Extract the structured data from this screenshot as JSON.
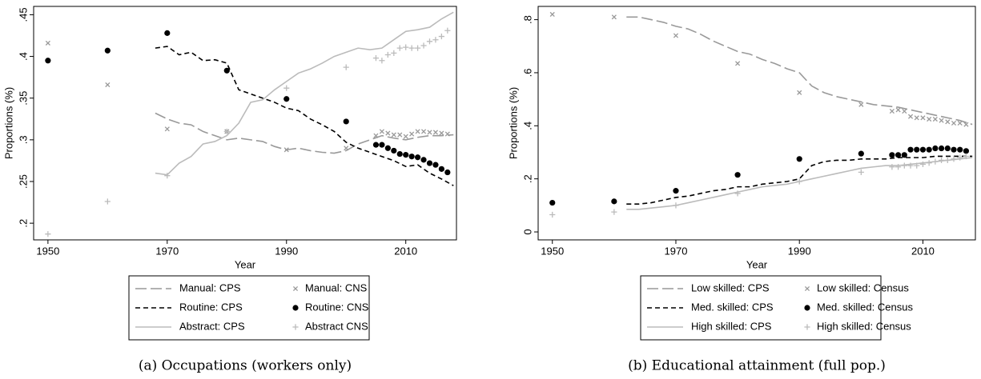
{
  "chart_data": [
    {
      "type": "line",
      "caption": "(a) Occupations (workers only)",
      "x_label": "Year",
      "y_label": "Proportions (%)",
      "xlim": [
        1947.6,
        2018.5
      ],
      "xticks": [
        1950,
        1970,
        1990,
        2010
      ],
      "ylim": [
        0.18,
        0.46
      ],
      "yticks": [
        {
          "value": 0.2,
          "label": ".2"
        },
        {
          "value": 0.25,
          "label": ".25"
        },
        {
          "value": 0.3,
          "label": ".3"
        },
        {
          "value": 0.35,
          "label": ".35"
        },
        {
          "value": 0.4,
          "label": ".4"
        },
        {
          "value": 0.45,
          "label": ".45"
        }
      ],
      "series": [
        {
          "name": "Manual: CPS",
          "color": "#999999",
          "style": "long-dash",
          "x": [
            1968,
            1970,
            1972,
            1974,
            1976,
            1978,
            1980,
            1982,
            1984,
            1986,
            1988,
            1990,
            1992,
            1994,
            1996,
            1998,
            2000,
            2002,
            2004,
            2006,
            2008,
            2010,
            2012,
            2014,
            2016,
            2018
          ],
          "values": [
            0.332,
            0.325,
            0.32,
            0.318,
            0.31,
            0.305,
            0.3,
            0.302,
            0.3,
            0.298,
            0.292,
            0.288,
            0.29,
            0.287,
            0.285,
            0.284,
            0.287,
            0.295,
            0.3,
            0.305,
            0.302,
            0.3,
            0.303,
            0.305,
            0.305,
            0.306
          ]
        },
        {
          "name": "Manual: CNS",
          "color": "#999999",
          "marker": "x",
          "x": [
            1950,
            1960,
            1970,
            1980,
            1990,
            2000,
            2005,
            2006,
            2007,
            2008,
            2009,
            2010,
            2011,
            2012,
            2013,
            2014,
            2015,
            2016,
            2017
          ],
          "values": [
            0.416,
            0.366,
            0.313,
            0.31,
            0.288,
            0.29,
            0.305,
            0.31,
            0.308,
            0.306,
            0.306,
            0.304,
            0.307,
            0.31,
            0.31,
            0.309,
            0.309,
            0.308,
            0.307
          ]
        },
        {
          "name": "Routine: CPS",
          "color": "#000000",
          "style": "short-dash",
          "x": [
            1968,
            1970,
            1972,
            1974,
            1976,
            1978,
            1980,
            1982,
            1984,
            1986,
            1988,
            1990,
            1992,
            1994,
            1996,
            1998,
            2000,
            2002,
            2004,
            2006,
            2008,
            2010,
            2012,
            2014,
            2016,
            2018
          ],
          "values": [
            0.41,
            0.412,
            0.402,
            0.405,
            0.395,
            0.396,
            0.392,
            0.36,
            0.355,
            0.35,
            0.345,
            0.338,
            0.335,
            0.325,
            0.318,
            0.31,
            0.297,
            0.29,
            0.285,
            0.28,
            0.275,
            0.268,
            0.27,
            0.26,
            0.253,
            0.245
          ]
        },
        {
          "name": "Routine: CNS",
          "color": "#000000",
          "marker": "o",
          "x": [
            1950,
            1960,
            1970,
            1980,
            1990,
            2000,
            2005,
            2006,
            2007,
            2008,
            2009,
            2010,
            2011,
            2012,
            2013,
            2014,
            2015,
            2016,
            2017
          ],
          "values": [
            0.395,
            0.407,
            0.428,
            0.383,
            0.349,
            0.322,
            0.294,
            0.294,
            0.29,
            0.287,
            0.283,
            0.282,
            0.28,
            0.279,
            0.276,
            0.272,
            0.27,
            0.265,
            0.261
          ]
        },
        {
          "name": "Abstract: CPS",
          "color": "#bbbbbb",
          "style": "solid",
          "x": [
            1968,
            1970,
            1972,
            1974,
            1976,
            1978,
            1980,
            1982,
            1984,
            1986,
            1988,
            1990,
            1992,
            1994,
            1996,
            1998,
            2000,
            2002,
            2004,
            2006,
            2008,
            2010,
            2012,
            2014,
            2016,
            2018
          ],
          "values": [
            0.26,
            0.258,
            0.272,
            0.28,
            0.295,
            0.298,
            0.305,
            0.32,
            0.345,
            0.348,
            0.36,
            0.37,
            0.38,
            0.385,
            0.392,
            0.4,
            0.405,
            0.41,
            0.408,
            0.41,
            0.42,
            0.43,
            0.432,
            0.435,
            0.445,
            0.453
          ]
        },
        {
          "name": "Abstract CNS",
          "color": "#bbbbbb",
          "marker": "+",
          "x": [
            1950,
            1960,
            1970,
            1980,
            1990,
            2000,
            2005,
            2006,
            2007,
            2008,
            2009,
            2010,
            2011,
            2012,
            2013,
            2014,
            2015,
            2016,
            2017
          ],
          "values": [
            0.187,
            0.226,
            0.257,
            0.31,
            0.362,
            0.387,
            0.398,
            0.395,
            0.402,
            0.404,
            0.41,
            0.411,
            0.41,
            0.41,
            0.413,
            0.418,
            0.42,
            0.424,
            0.431
          ]
        }
      ]
    },
    {
      "type": "line",
      "caption": "(b) Educational attainment (full pop.)",
      "x_label": "Year",
      "y_label": "Proportions (%)",
      "xlim": [
        1947.7,
        2018.5
      ],
      "xticks": [
        1950,
        1970,
        1990,
        2010
      ],
      "ylim": [
        -0.03,
        0.85
      ],
      "yticks": [
        0,
        {
          "value": 0.2,
          "label": ".2"
        },
        {
          "value": 0.4,
          "label": ".4"
        },
        {
          "value": 0.6,
          "label": ".6"
        },
        {
          "value": 0.8,
          "label": ".8"
        }
      ],
      "series": [
        {
          "name": "Low skilled: CPS",
          "color": "#999999",
          "style": "long-dash",
          "x": [
            1962,
            1964,
            1966,
            1968,
            1970,
            1972,
            1974,
            1976,
            1978,
            1980,
            1982,
            1984,
            1986,
            1988,
            1990,
            1992,
            1994,
            1996,
            1998,
            2000,
            2002,
            2004,
            2006,
            2008,
            2010,
            2012,
            2014,
            2016,
            2018
          ],
          "values": [
            0.81,
            0.81,
            0.8,
            0.79,
            0.775,
            0.765,
            0.745,
            0.72,
            0.7,
            0.68,
            0.67,
            0.65,
            0.635,
            0.615,
            0.6,
            0.55,
            0.525,
            0.51,
            0.5,
            0.49,
            0.48,
            0.475,
            0.47,
            0.46,
            0.45,
            0.44,
            0.43,
            0.42,
            0.405
          ]
        },
        {
          "name": "Low skilled: Census",
          "color": "#999999",
          "marker": "x",
          "x": [
            1950,
            1960,
            1970,
            1980,
            1990,
            2000,
            2005,
            2006,
            2007,
            2008,
            2009,
            2010,
            2011,
            2012,
            2013,
            2014,
            2015,
            2016,
            2017
          ],
          "values": [
            0.82,
            0.81,
            0.74,
            0.635,
            0.525,
            0.48,
            0.455,
            0.46,
            0.455,
            0.435,
            0.43,
            0.43,
            0.425,
            0.425,
            0.42,
            0.415,
            0.41,
            0.41,
            0.405
          ]
        },
        {
          "name": "Med. skilled: CPS",
          "color": "#000000",
          "style": "short-dash",
          "x": [
            1962,
            1964,
            1966,
            1968,
            1970,
            1972,
            1974,
            1976,
            1978,
            1980,
            1982,
            1984,
            1986,
            1988,
            1990,
            1992,
            1994,
            1996,
            1998,
            2000,
            2002,
            2004,
            2006,
            2008,
            2010,
            2012,
            2014,
            2016,
            2018
          ],
          "values": [
            0.105,
            0.105,
            0.11,
            0.12,
            0.13,
            0.135,
            0.145,
            0.155,
            0.16,
            0.17,
            0.17,
            0.18,
            0.185,
            0.19,
            0.2,
            0.25,
            0.265,
            0.27,
            0.27,
            0.275,
            0.275,
            0.275,
            0.28,
            0.28,
            0.28,
            0.285,
            0.285,
            0.285,
            0.285
          ]
        },
        {
          "name": "Med. skilled: Census",
          "color": "#000000",
          "marker": "o",
          "x": [
            1950,
            1960,
            1970,
            1980,
            1990,
            2000,
            2005,
            2006,
            2007,
            2008,
            2009,
            2010,
            2011,
            2012,
            2013,
            2014,
            2015,
            2016,
            2017
          ],
          "values": [
            0.11,
            0.115,
            0.155,
            0.215,
            0.275,
            0.295,
            0.29,
            0.29,
            0.29,
            0.31,
            0.31,
            0.31,
            0.31,
            0.315,
            0.315,
            0.315,
            0.31,
            0.31,
            0.305
          ]
        },
        {
          "name": "High skilled: CPS",
          "color": "#bbbbbb",
          "style": "solid",
          "x": [
            1962,
            1964,
            1966,
            1968,
            1970,
            1972,
            1974,
            1976,
            1978,
            1980,
            1982,
            1984,
            1986,
            1988,
            1990,
            1992,
            1994,
            1996,
            1998,
            2000,
            2002,
            2004,
            2006,
            2008,
            2010,
            2012,
            2014,
            2016,
            2018
          ],
          "values": [
            0.085,
            0.085,
            0.09,
            0.095,
            0.1,
            0.11,
            0.12,
            0.13,
            0.14,
            0.15,
            0.16,
            0.17,
            0.175,
            0.18,
            0.19,
            0.2,
            0.21,
            0.22,
            0.23,
            0.24,
            0.245,
            0.25,
            0.25,
            0.255,
            0.26,
            0.265,
            0.27,
            0.275,
            0.28
          ]
        },
        {
          "name": "High skilled: Census",
          "color": "#bbbbbb",
          "marker": "+",
          "x": [
            1950,
            1960,
            1970,
            1980,
            1990,
            2000,
            2005,
            2006,
            2007,
            2008,
            2009,
            2010,
            2011,
            2012,
            2013,
            2014,
            2015,
            2016,
            2017
          ],
          "values": [
            0.065,
            0.075,
            0.1,
            0.145,
            0.19,
            0.225,
            0.245,
            0.245,
            0.25,
            0.25,
            0.25,
            0.255,
            0.26,
            0.265,
            0.27,
            0.27,
            0.275,
            0.28,
            0.285
          ]
        }
      ]
    }
  ]
}
